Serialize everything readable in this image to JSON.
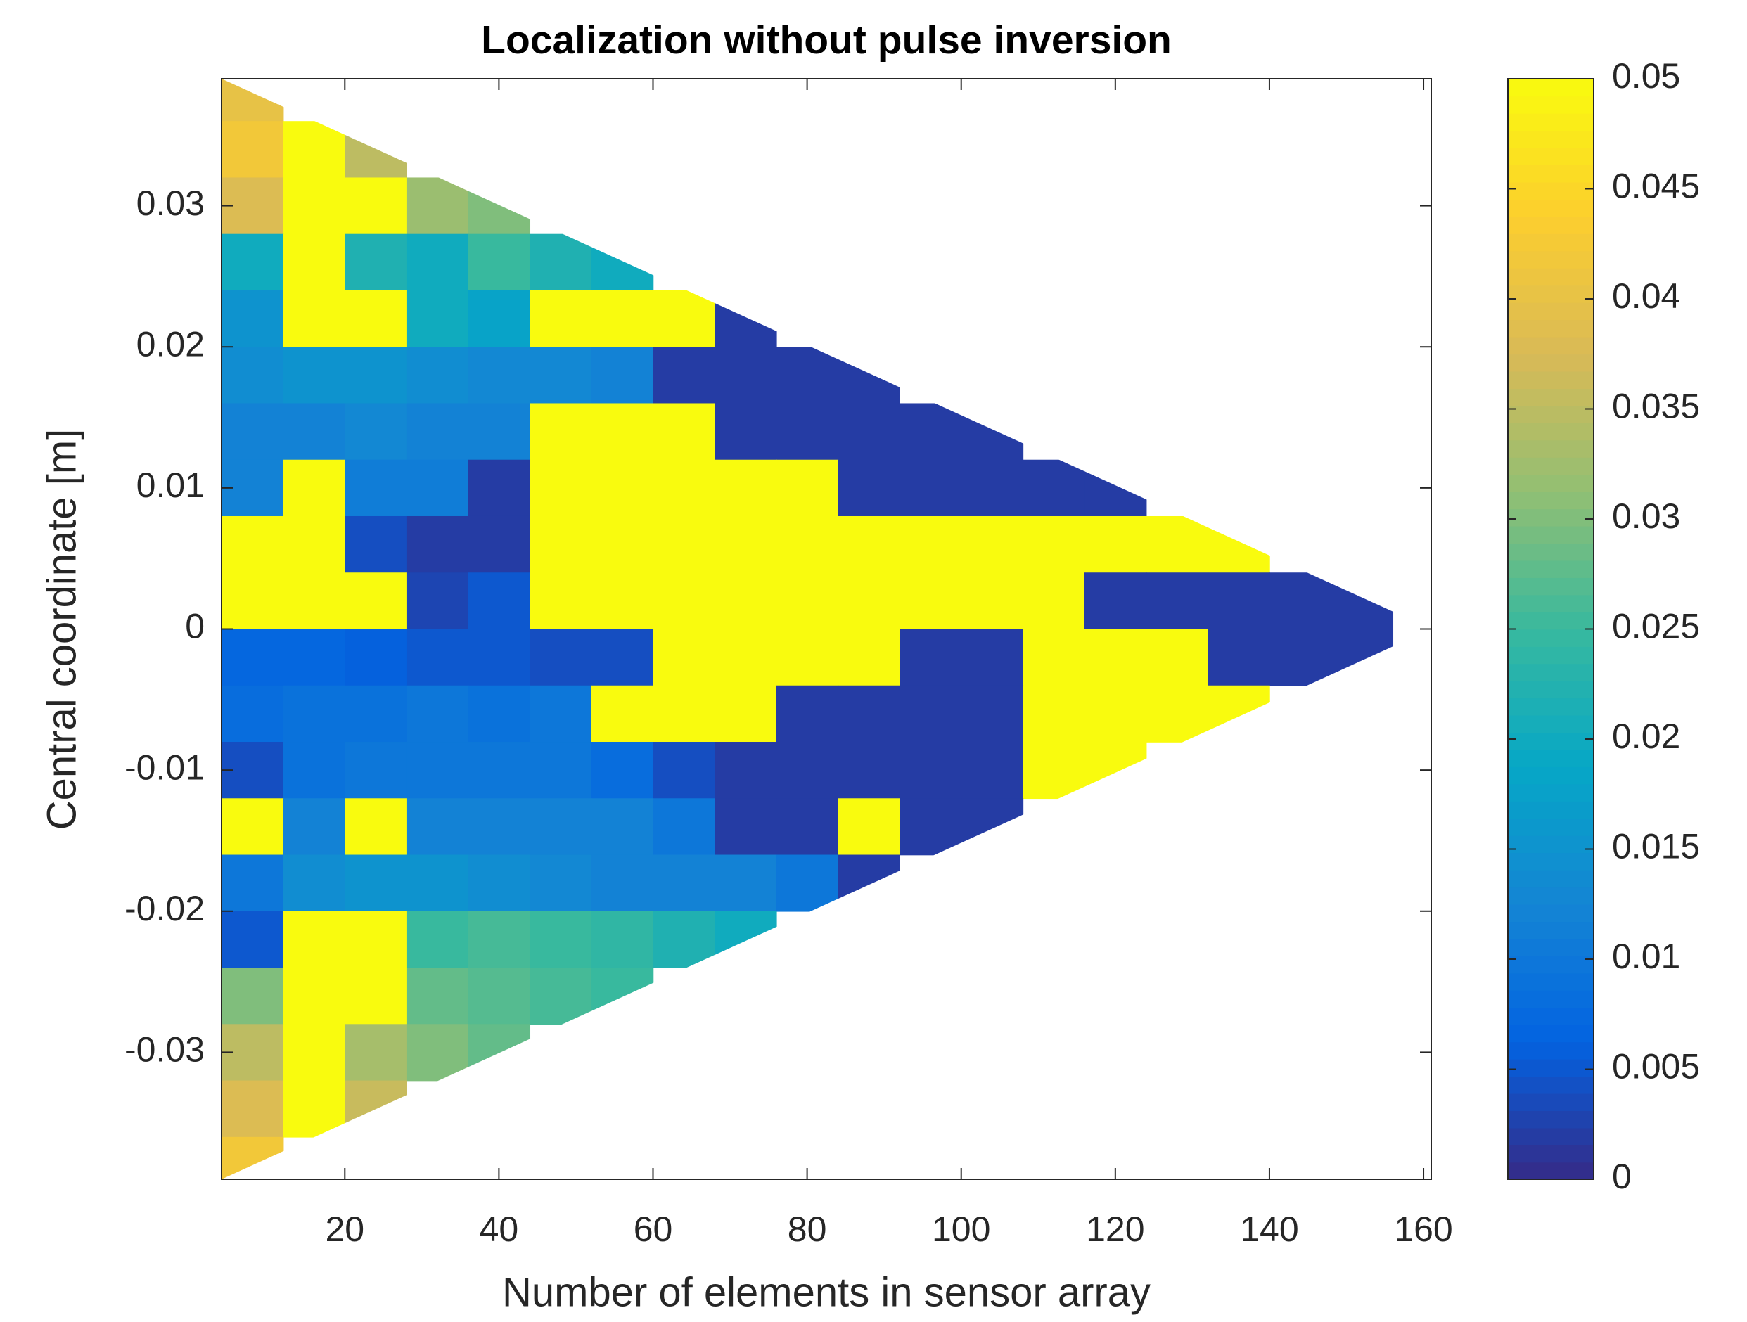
{
  "chart_data": {
    "type": "heatmap",
    "title": "Localization without pulse inversion",
    "xlabel": "Number of elements in sensor array",
    "ylabel": "Central coordinate [m]",
    "x": [
      8,
      16,
      24,
      32,
      40,
      48,
      56,
      64,
      72,
      80,
      88,
      96,
      104,
      112,
      120,
      128,
      136,
      144,
      152
    ],
    "y": [
      0.038,
      0.034,
      0.03,
      0.026,
      0.022,
      0.018,
      0.014,
      0.01,
      0.006,
      0.002,
      -0.002,
      -0.006,
      -0.01,
      -0.014,
      -0.018,
      -0.022,
      -0.026,
      -0.03,
      -0.034,
      -0.038
    ],
    "z": [
      [
        0.04,
        null,
        null,
        null,
        null,
        null,
        null,
        null,
        null,
        null,
        null,
        null,
        null,
        null,
        null,
        null,
        null,
        null,
        null
      ],
      [
        0.042,
        0.05,
        0.035,
        null,
        null,
        null,
        null,
        null,
        null,
        null,
        null,
        null,
        null,
        null,
        null,
        null,
        null,
        null,
        null
      ],
      [
        0.038,
        0.05,
        0.05,
        0.032,
        0.03,
        null,
        null,
        null,
        null,
        null,
        null,
        null,
        null,
        null,
        null,
        null,
        null,
        null,
        null
      ],
      [
        0.02,
        0.05,
        0.022,
        0.02,
        0.025,
        0.022,
        0.02,
        null,
        null,
        null,
        null,
        null,
        null,
        null,
        null,
        null,
        null,
        null,
        null
      ],
      [
        0.015,
        0.05,
        0.05,
        0.02,
        0.018,
        0.05,
        0.05,
        0.05,
        0.002,
        null,
        null,
        null,
        null,
        null,
        null,
        null,
        null,
        null,
        null
      ],
      [
        0.014,
        0.015,
        0.015,
        0.014,
        0.013,
        0.013,
        0.012,
        0.002,
        0.002,
        0.002,
        0.002,
        null,
        null,
        null,
        null,
        null,
        null,
        null,
        null
      ],
      [
        0.012,
        0.012,
        0.013,
        0.012,
        0.012,
        0.05,
        0.05,
        0.05,
        0.002,
        0.002,
        0.002,
        0.002,
        0.002,
        null,
        null,
        null,
        null,
        null,
        null
      ],
      [
        0.012,
        0.05,
        0.011,
        0.011,
        0.002,
        0.05,
        0.05,
        0.05,
        0.05,
        0.05,
        0.002,
        0.002,
        0.002,
        0.002,
        0.002,
        null,
        null,
        null,
        null
      ],
      [
        0.05,
        0.05,
        0.004,
        0.002,
        0.002,
        0.05,
        0.05,
        0.05,
        0.05,
        0.05,
        0.05,
        0.05,
        0.05,
        0.05,
        0.05,
        0.05,
        0.05,
        null,
        null
      ],
      [
        0.05,
        0.05,
        0.05,
        0.003,
        0.005,
        0.05,
        0.05,
        0.05,
        0.05,
        0.05,
        0.05,
        0.05,
        0.05,
        0.05,
        0.002,
        0.002,
        0.002,
        0.002,
        0.002
      ],
      [
        0.007,
        0.007,
        0.006,
        0.005,
        0.005,
        0.004,
        0.004,
        0.05,
        0.05,
        0.05,
        0.05,
        0.002,
        0.002,
        0.05,
        0.05,
        0.05,
        0.002,
        0.002,
        0.002
      ],
      [
        0.008,
        0.009,
        0.009,
        0.01,
        0.009,
        0.01,
        0.05,
        0.05,
        0.05,
        0.002,
        0.002,
        0.002,
        0.002,
        0.05,
        0.05,
        0.05,
        0.05,
        null,
        null
      ],
      [
        0.004,
        0.009,
        0.01,
        0.01,
        0.01,
        0.01,
        0.008,
        0.004,
        0.002,
        0.002,
        0.002,
        0.002,
        0.002,
        0.05,
        0.05,
        null,
        null,
        null,
        null
      ],
      [
        0.05,
        0.012,
        0.05,
        0.012,
        0.012,
        0.012,
        0.012,
        0.01,
        0.002,
        0.002,
        0.05,
        0.002,
        0.002,
        null,
        null,
        null,
        null,
        null,
        null
      ],
      [
        0.01,
        0.014,
        0.015,
        0.015,
        0.014,
        0.013,
        0.012,
        0.012,
        0.012,
        0.01,
        0.002,
        null,
        null,
        null,
        null,
        null,
        null,
        null,
        null
      ],
      [
        0.005,
        0.05,
        0.05,
        0.025,
        0.026,
        0.025,
        0.024,
        0.022,
        0.02,
        null,
        null,
        null,
        null,
        null,
        null,
        null,
        null,
        null,
        null
      ],
      [
        0.03,
        0.05,
        0.05,
        0.028,
        0.027,
        0.026,
        0.025,
        null,
        null,
        null,
        null,
        null,
        null,
        null,
        null,
        null,
        null,
        null,
        null
      ],
      [
        0.035,
        0.05,
        0.033,
        0.03,
        0.028,
        null,
        null,
        null,
        null,
        null,
        null,
        null,
        null,
        null,
        null,
        null,
        null,
        null,
        null
      ],
      [
        0.038,
        0.05,
        0.036,
        null,
        null,
        null,
        null,
        null,
        null,
        null,
        null,
        null,
        null,
        null,
        null,
        null,
        null,
        null,
        null
      ],
      [
        0.042,
        null,
        null,
        null,
        null,
        null,
        null,
        null,
        null,
        null,
        null,
        null,
        null,
        null,
        null,
        null,
        null,
        null,
        null
      ]
    ],
    "xlim": [
      4,
      161
    ],
    "xticks": [
      20,
      40,
      60,
      80,
      100,
      120,
      140,
      160
    ],
    "ylim": [
      -0.039,
      0.039
    ],
    "yticks": [
      -0.03,
      -0.02,
      -0.01,
      0,
      0.01,
      0.02,
      0.03
    ],
    "clim": [
      0,
      0.05
    ],
    "cticks": [
      0,
      0.005,
      0.01,
      0.015,
      0.02,
      0.025,
      0.03,
      0.035,
      0.04,
      0.045,
      0.05
    ],
    "colorscale": [
      "#352a87",
      "#0363e1",
      "#1485d4",
      "#06a7c6",
      "#38b99e",
      "#92bf73",
      "#d9ba56",
      "#fcce2e",
      "#f9fb0e"
    ]
  }
}
